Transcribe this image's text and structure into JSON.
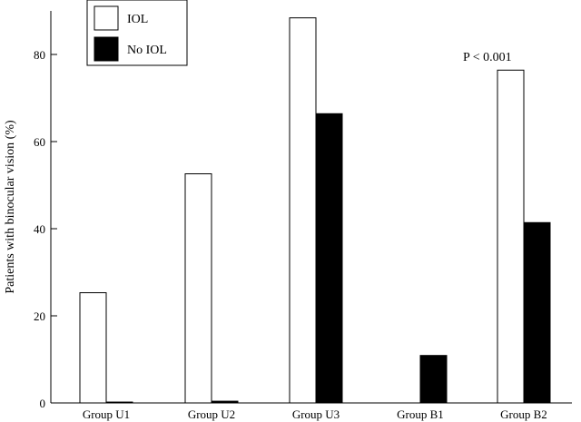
{
  "chart_data": {
    "type": "bar",
    "title": "",
    "xlabel": "",
    "ylabel": "Patients with binocular vision (%)",
    "ylim": [
      0,
      95
    ],
    "yticks": [
      0,
      20,
      40,
      60,
      80
    ],
    "categories": [
      "Group U1",
      "Group U2",
      "Group U3",
      "Group B1",
      "Group B2"
    ],
    "series": [
      {
        "name": "IOL",
        "color": "#ffffff",
        "values": [
          25.3,
          52.6,
          88.4,
          0.0,
          76.4
        ]
      },
      {
        "name": "No IOL",
        "color": "#000000",
        "values": [
          0.2,
          0.4,
          66.4,
          10.9,
          41.4
        ]
      }
    ],
    "annotations": [
      {
        "text": "P < 0.001",
        "category": "Group B2",
        "y": 78.5
      }
    ],
    "legend": {
      "position": "top-left"
    },
    "grid": false
  }
}
